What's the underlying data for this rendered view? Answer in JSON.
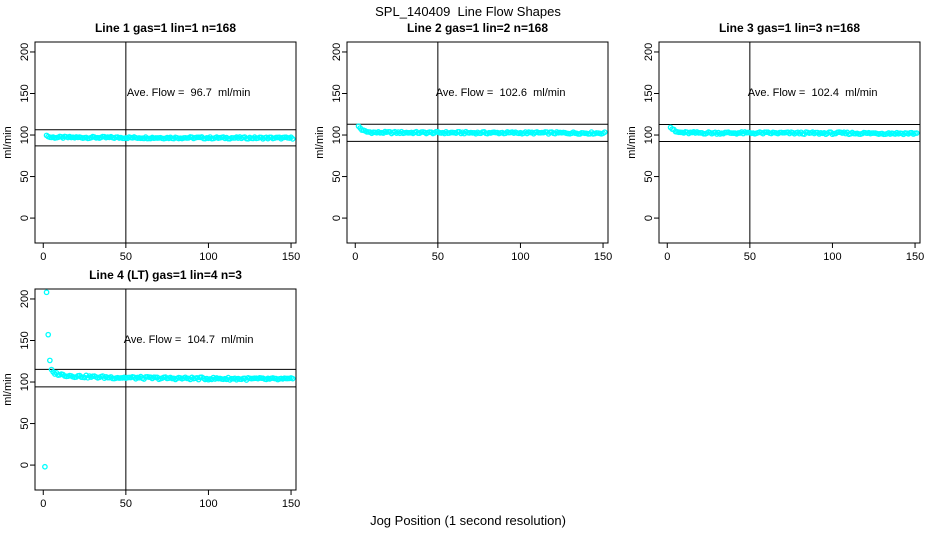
{
  "figure_title": "SPL_140409  Line Flow Shapes",
  "x_axis_label": "Jog Position (1 second resolution)",
  "units": "ml/min",
  "colors": {
    "point_color": "#00ffff",
    "line_color": "#000000",
    "background": "#ffffff",
    "text": "#000000"
  },
  "chart_data": [
    {
      "type": "scatter",
      "title": "Line 1 gas=1 lin=1 n=168",
      "line_number": 1,
      "gas": 1,
      "lin": 1,
      "n": 168,
      "annotation": "Ave. Flow =  96.7  ml/min",
      "ave_flow_ml_min": 96.7,
      "ylabel": "ml/min",
      "x_ticks": [
        0,
        50,
        100,
        150
      ],
      "y_ticks": [
        0,
        50,
        100,
        150,
        200
      ],
      "x_range": [
        -5,
        153
      ],
      "y_range": [
        -30,
        212
      ],
      "vline_x": 50,
      "hlines": [
        106.4,
        87.0
      ],
      "annotation_xy": [
        88,
        152
      ],
      "grid": false,
      "legend": null,
      "series": {
        "name": "flow",
        "marker": "open-circle",
        "x_start": 2,
        "x_end": 151,
        "x_step": 1,
        "profile": [
          [
            2,
            100.5
          ],
          [
            3,
            98.0
          ],
          [
            5,
            97.2
          ],
          [
            60,
            96.8
          ],
          [
            151,
            96.4
          ]
        ],
        "jitter": 1.1,
        "outliers": []
      }
    },
    {
      "type": "scatter",
      "title": "Line 2 gas=1 lin=2 n=168",
      "line_number": 2,
      "gas": 1,
      "lin": 2,
      "n": 168,
      "annotation": "Ave. Flow =  102.6  ml/min",
      "ave_flow_ml_min": 102.6,
      "ylabel": "ml/min",
      "x_ticks": [
        0,
        50,
        100,
        150
      ],
      "y_ticks": [
        0,
        50,
        100,
        150,
        200
      ],
      "x_range": [
        -5,
        153
      ],
      "y_range": [
        -30,
        212
      ],
      "vline_x": 50,
      "hlines": [
        112.9,
        92.3
      ],
      "annotation_xy": [
        88,
        152
      ],
      "grid": false,
      "legend": null,
      "series": {
        "name": "flow",
        "marker": "open-circle",
        "x_start": 2,
        "x_end": 151,
        "x_step": 1,
        "profile": [
          [
            2,
            110.5
          ],
          [
            3,
            108.5
          ],
          [
            4,
            106.5
          ],
          [
            5,
            105.0
          ],
          [
            7,
            103.8
          ],
          [
            12,
            103.0
          ],
          [
            80,
            102.7
          ],
          [
            151,
            102.4
          ]
        ],
        "jitter": 1.2,
        "outliers": []
      }
    },
    {
      "type": "scatter",
      "title": "Line 3 gas=1 lin=3 n=168",
      "line_number": 3,
      "gas": 1,
      "lin": 3,
      "n": 168,
      "annotation": "Ave. Flow =  102.4  ml/min",
      "ave_flow_ml_min": 102.4,
      "ylabel": "ml/min",
      "x_ticks": [
        0,
        50,
        100,
        150
      ],
      "y_ticks": [
        0,
        50,
        100,
        150,
        200
      ],
      "x_range": [
        -5,
        153
      ],
      "y_range": [
        -30,
        212
      ],
      "vline_x": 50,
      "hlines": [
        112.6,
        92.2
      ],
      "annotation_xy": [
        88,
        152
      ],
      "grid": false,
      "legend": null,
      "series": {
        "name": "flow",
        "marker": "open-circle",
        "x_start": 2,
        "x_end": 151,
        "x_step": 1,
        "profile": [
          [
            2,
            109.5
          ],
          [
            3,
            107.5
          ],
          [
            4,
            105.5
          ],
          [
            5,
            104.0
          ],
          [
            7,
            103.2
          ],
          [
            12,
            102.6
          ],
          [
            80,
            102.3
          ],
          [
            151,
            102.0
          ]
        ],
        "jitter": 1.3,
        "outliers": []
      }
    },
    {
      "type": "scatter",
      "title": "Line 4 (LT) gas=1 lin=4 n=3",
      "line_number": 4,
      "gas": 1,
      "lin": 4,
      "n": 3,
      "annotation": "Ave. Flow =  104.7  ml/min",
      "ave_flow_ml_min": 104.7,
      "ylabel": "ml/min",
      "x_ticks": [
        0,
        50,
        100,
        150
      ],
      "y_ticks": [
        0,
        50,
        100,
        150,
        200
      ],
      "x_range": [
        -5,
        153
      ],
      "y_range": [
        -30,
        212
      ],
      "vline_x": 50,
      "hlines": [
        115.2,
        94.2
      ],
      "annotation_xy": [
        88,
        152
      ],
      "grid": false,
      "legend": null,
      "series": {
        "name": "flow",
        "marker": "open-circle",
        "x_start": 6,
        "x_end": 151,
        "x_step": 1,
        "profile": [
          [
            6,
            111.5
          ],
          [
            8,
            110.0
          ],
          [
            12,
            108.5
          ],
          [
            18,
            107.3
          ],
          [
            28,
            106.3
          ],
          [
            45,
            105.4
          ],
          [
            70,
            104.7
          ],
          [
            100,
            104.2
          ],
          [
            130,
            103.7
          ],
          [
            151,
            103.3
          ]
        ],
        "jitter": 1.5,
        "outliers": [
          [
            1,
            -2
          ],
          [
            2,
            208
          ],
          [
            3,
            157
          ],
          [
            4,
            126
          ],
          [
            5,
            115
          ]
        ]
      }
    }
  ]
}
